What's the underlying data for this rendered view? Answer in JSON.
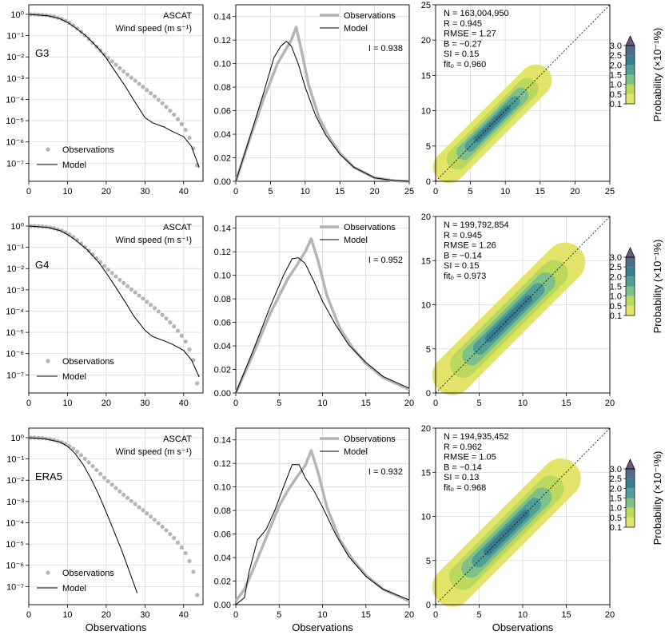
{
  "figure": {
    "xlabel": "Observations",
    "colorbar": {
      "label": "Probability (×10⁻¹%)",
      "ticks": [
        "0.1",
        "0.5",
        "1.0",
        "1.5",
        "2.0",
        "2.5",
        "3.0"
      ],
      "colors": [
        "#e2e46a",
        "#bad85b",
        "#7fc08a",
        "#4f9f96",
        "#387e8f",
        "#4e6d86",
        "#6c5b78"
      ]
    }
  },
  "chart_data": [
    {
      "row": "G3",
      "type": "scatter",
      "panel": "pdf-log",
      "title": "ASCAT",
      "subtitle": "Wind speed (m s⁻¹)",
      "label": "G3",
      "legend": [
        "Observations",
        "Model"
      ],
      "xlim": [
        0,
        45
      ],
      "xticks": [
        "0",
        "10",
        "20",
        "30",
        "40"
      ],
      "yticks": [
        "10⁰",
        "10⁻¹",
        "10⁻²",
        "10⁻³",
        "10⁻⁴",
        "10⁻⁵",
        "10⁻⁶",
        "10⁻⁷"
      ],
      "series": [
        {
          "name": "Observations",
          "x": [
            0.5,
            1.5,
            2.5,
            3.5,
            4.5,
            5.5,
            6.5,
            7.5,
            8.5,
            9.5,
            10.5,
            11.5,
            12.5,
            13.5,
            14.5,
            15.5,
            16.5,
            17.5,
            18.5,
            19.5,
            20.5,
            21.5,
            22.5,
            23.5,
            24.5,
            25.5,
            26.5,
            27.5,
            28.5,
            29.5,
            30.5,
            31.5,
            32.5,
            33.5,
            34.5,
            35.5,
            36.5,
            37.5,
            38.5,
            39.5,
            40.5,
            41.5,
            42.5,
            43.5
          ],
          "y": [
            0,
            0,
            -0.01,
            -0.02,
            -0.04,
            -0.07,
            -0.11,
            -0.16,
            -0.22,
            -0.3,
            -0.4,
            -0.52,
            -0.66,
            -0.82,
            -0.99,
            -1.16,
            -1.34,
            -1.52,
            -1.7,
            -1.88,
            -2.05,
            -2.21,
            -2.37,
            -2.53,
            -2.68,
            -2.83,
            -2.98,
            -3.12,
            -3.27,
            -3.41,
            -3.56,
            -3.71,
            -3.86,
            -4.02,
            -4.18,
            -4.35,
            -4.53,
            -4.72,
            -4.93,
            -5.16,
            -5.43,
            -5.8,
            -6.3,
            -7.1
          ]
        },
        {
          "name": "Model",
          "x": [
            0,
            5,
            8,
            10,
            12,
            15,
            18,
            20,
            22,
            25,
            27,
            30,
            32,
            35,
            37,
            40,
            42,
            44
          ],
          "y": [
            0,
            -0.07,
            -0.2,
            -0.38,
            -0.62,
            -1.05,
            -1.6,
            -2.05,
            -2.6,
            -3.4,
            -4,
            -4.85,
            -5.1,
            -5.3,
            -5.5,
            -5.75,
            -6.2,
            -7.2
          ]
        }
      ]
    },
    {
      "row": "G3",
      "type": "line",
      "panel": "pdf-linear",
      "I": "I = 0.938",
      "legend": [
        "Observations",
        "Model"
      ],
      "xlim": [
        0,
        25
      ],
      "ylim": [
        0,
        0.15
      ],
      "xticks": [
        "0",
        "5",
        "10",
        "15",
        "20",
        "25"
      ],
      "yticks": [
        "0.00",
        "0.02",
        "0.04",
        "0.06",
        "0.08",
        "0.10",
        "0.12",
        "0.14"
      ],
      "series": [
        {
          "name": "Observations",
          "x": [
            0,
            2,
            4,
            6,
            7,
            8,
            8.7,
            9.5,
            10.5,
            12,
            13.5,
            15,
            17,
            20,
            23,
            25
          ],
          "y": [
            0,
            0.036,
            0.07,
            0.1,
            0.11,
            0.12,
            0.131,
            0.11,
            0.082,
            0.054,
            0.037,
            0.024,
            0.012,
            0.003,
            0.0005,
            0
          ]
        },
        {
          "name": "Model",
          "x": [
            0,
            2,
            4,
            5.5,
            6.5,
            7.3,
            8,
            9,
            10,
            11.5,
            13,
            15,
            17,
            20,
            23,
            25
          ],
          "y": [
            0,
            0.037,
            0.075,
            0.105,
            0.115,
            0.119,
            0.115,
            0.1,
            0.08,
            0.056,
            0.039,
            0.023,
            0.012,
            0.003,
            0.0005,
            0
          ]
        }
      ]
    },
    {
      "row": "G3",
      "type": "heatmap",
      "panel": "scatter-density",
      "xlim": [
        0,
        25
      ],
      "ylim": [
        0,
        25
      ],
      "xticks": [
        "0",
        "5",
        "10",
        "15",
        "20",
        "25"
      ],
      "yticks": [
        "0",
        "5",
        "10",
        "15",
        "20",
        "25"
      ],
      "range": [
        0,
        16
      ],
      "stats": [
        "N = 163,004,950",
        "R = 0.945",
        "RMSE = 1.27",
        "B = −0.27",
        "SI = 0.15",
        "fit₀ = 0.960"
      ]
    },
    {
      "row": "G4",
      "type": "scatter",
      "panel": "pdf-log",
      "title": "ASCAT",
      "subtitle": "Wind speed (m s⁻¹)",
      "label": "G4",
      "legend": [
        "Observations",
        "Model"
      ],
      "xlim": [
        0,
        45
      ],
      "xticks": [
        "0",
        "10",
        "20",
        "30",
        "40"
      ],
      "yticks": [
        "10⁰",
        "10⁻¹",
        "10⁻²",
        "10⁻³",
        "10⁻⁴",
        "10⁻⁵",
        "10⁻⁶",
        "10⁻⁷"
      ],
      "series": [
        {
          "name": "Observations",
          "x": [
            0.5,
            1.5,
            2.5,
            3.5,
            4.5,
            5.5,
            6.5,
            7.5,
            8.5,
            9.5,
            10.5,
            11.5,
            12.5,
            13.5,
            14.5,
            15.5,
            16.5,
            17.5,
            18.5,
            19.5,
            20.5,
            21.5,
            22.5,
            23.5,
            24.5,
            25.5,
            26.5,
            27.5,
            28.5,
            29.5,
            30.5,
            31.5,
            32.5,
            33.5,
            34.5,
            35.5,
            36.5,
            37.5,
            38.5,
            39.5,
            40.5,
            41.5,
            42.5,
            43.5
          ],
          "y": [
            0,
            0,
            -0.01,
            -0.02,
            -0.04,
            -0.07,
            -0.11,
            -0.16,
            -0.22,
            -0.3,
            -0.4,
            -0.52,
            -0.66,
            -0.82,
            -0.99,
            -1.16,
            -1.34,
            -1.52,
            -1.7,
            -1.88,
            -2.05,
            -2.21,
            -2.37,
            -2.53,
            -2.68,
            -2.83,
            -2.98,
            -3.12,
            -3.27,
            -3.41,
            -3.56,
            -3.71,
            -3.86,
            -4.02,
            -4.18,
            -4.35,
            -4.53,
            -4.72,
            -4.93,
            -5.16,
            -5.43,
            -5.8,
            -6.3,
            -7.4
          ]
        },
        {
          "name": "Model",
          "x": [
            0,
            5,
            8,
            10,
            12,
            15,
            18,
            20,
            22,
            25,
            27,
            30,
            32,
            35,
            37,
            40,
            42,
            44
          ],
          "y": [
            0,
            -0.07,
            -0.21,
            -0.4,
            -0.65,
            -1.1,
            -1.7,
            -2.2,
            -2.75,
            -3.6,
            -4.2,
            -4.9,
            -5.2,
            -5.4,
            -5.55,
            -5.85,
            -6.3,
            -7.1
          ]
        }
      ]
    },
    {
      "row": "G4",
      "type": "line",
      "panel": "pdf-linear",
      "I": "I = 0.952",
      "legend": [
        "Observations",
        "Model"
      ],
      "xlim": [
        0,
        20
      ],
      "ylim": [
        0,
        0.15
      ],
      "xticks": [
        "0",
        "5",
        "10",
        "15",
        "20"
      ],
      "yticks": [
        "0.00",
        "0.02",
        "0.04",
        "0.06",
        "0.08",
        "0.10",
        "0.12",
        "0.14"
      ],
      "series": [
        {
          "name": "Observations",
          "x": [
            0,
            2,
            4,
            6,
            7,
            8,
            8.7,
            9.5,
            10.5,
            12,
            13.5,
            15,
            17,
            20
          ],
          "y": [
            0,
            0.033,
            0.068,
            0.097,
            0.108,
            0.12,
            0.131,
            0.112,
            0.083,
            0.055,
            0.038,
            0.025,
            0.013,
            0.003
          ]
        },
        {
          "name": "Model",
          "x": [
            0,
            2,
            4,
            5.5,
            6.5,
            7.2,
            8,
            9,
            10,
            11.5,
            13,
            15,
            17,
            20
          ],
          "y": [
            0,
            0.036,
            0.074,
            0.1,
            0.114,
            0.115,
            0.11,
            0.095,
            0.078,
            0.058,
            0.041,
            0.026,
            0.014,
            0.004
          ]
        }
      ]
    },
    {
      "row": "G4",
      "type": "heatmap",
      "panel": "scatter-density",
      "xlim": [
        0,
        20
      ],
      "ylim": [
        0,
        20
      ],
      "xticks": [
        "0",
        "5",
        "10",
        "15",
        "20"
      ],
      "yticks": [
        "0",
        "5",
        "10",
        "15",
        "20"
      ],
      "range": [
        0,
        16.5
      ],
      "stats": [
        "N = 199,792,854",
        "R = 0.945",
        "RMSE = 1.26",
        "B = −0.14",
        "SI = 0.15",
        "fit₀ = 0.973"
      ]
    },
    {
      "row": "ERA5",
      "type": "scatter",
      "panel": "pdf-log",
      "title": "ASCAT",
      "subtitle": "Wind speed (m s⁻¹)",
      "label": "ERA5",
      "legend": [
        "Observations",
        "Model"
      ],
      "xlim": [
        0,
        45
      ],
      "xticks": [
        "0",
        "10",
        "20",
        "30",
        "40"
      ],
      "yticks": [
        "10⁰",
        "10⁻¹",
        "10⁻²",
        "10⁻³",
        "10⁻⁴",
        "10⁻⁵",
        "10⁻⁶",
        "10⁻⁷"
      ],
      "series": [
        {
          "name": "Observations",
          "x": [
            0.5,
            1.5,
            2.5,
            3.5,
            4.5,
            5.5,
            6.5,
            7.5,
            8.5,
            9.5,
            10.5,
            11.5,
            12.5,
            13.5,
            14.5,
            15.5,
            16.5,
            17.5,
            18.5,
            19.5,
            20.5,
            21.5,
            22.5,
            23.5,
            24.5,
            25.5,
            26.5,
            27.5,
            28.5,
            29.5,
            30.5,
            31.5,
            32.5,
            33.5,
            34.5,
            35.5,
            36.5,
            37.5,
            38.5,
            39.5,
            40.5,
            41.5,
            42.5,
            43.5
          ],
          "y": [
            0,
            0,
            -0.01,
            -0.02,
            -0.04,
            -0.07,
            -0.11,
            -0.16,
            -0.22,
            -0.3,
            -0.4,
            -0.52,
            -0.66,
            -0.82,
            -0.99,
            -1.16,
            -1.34,
            -1.52,
            -1.7,
            -1.88,
            -2.05,
            -2.21,
            -2.37,
            -2.53,
            -2.68,
            -2.83,
            -2.98,
            -3.12,
            -3.27,
            -3.41,
            -3.56,
            -3.71,
            -3.86,
            -4.02,
            -4.18,
            -4.35,
            -4.53,
            -4.72,
            -4.93,
            -5.16,
            -5.43,
            -5.8,
            -6.3,
            -7.4
          ]
        },
        {
          "name": "Model",
          "x": [
            0,
            4,
            8,
            10,
            12,
            14,
            16,
            18,
            20,
            22,
            24,
            26,
            28
          ],
          "y": [
            0,
            -0.05,
            -0.2,
            -0.4,
            -0.75,
            -1.25,
            -1.9,
            -2.65,
            -3.5,
            -4.4,
            -5.3,
            -6.3,
            -7.3
          ]
        }
      ]
    },
    {
      "row": "ERA5",
      "type": "line",
      "panel": "pdf-linear",
      "I": "I = 0.932",
      "legend": [
        "Observations",
        "Model"
      ],
      "xlim": [
        0,
        20
      ],
      "ylim": [
        0,
        0.15
      ],
      "xticks": [
        "0",
        "5",
        "10",
        "15",
        "20"
      ],
      "yticks": [
        "0.00",
        "0.02",
        "0.04",
        "0.06",
        "0.08",
        "0.10",
        "0.12",
        "0.14"
      ],
      "series": [
        {
          "name": "Observations",
          "x": [
            0,
            1,
            2,
            3,
            4,
            5,
            6,
            7,
            8,
            8.7,
            9.5,
            10.5,
            12,
            13.5,
            15,
            17,
            20
          ],
          "y": [
            0.003,
            0.013,
            0.03,
            0.048,
            0.066,
            0.084,
            0.097,
            0.108,
            0.118,
            0.131,
            0.112,
            0.083,
            0.055,
            0.038,
            0.025,
            0.013,
            0.003
          ]
        },
        {
          "name": "Model",
          "x": [
            0,
            1,
            1.5,
            2.5,
            3.5,
            4.5,
            5.5,
            6.5,
            7.3,
            8,
            9,
            10,
            11.5,
            13,
            15,
            17,
            20
          ],
          "y": [
            0,
            0.006,
            0.027,
            0.055,
            0.064,
            0.08,
            0.1,
            0.119,
            0.119,
            0.108,
            0.097,
            0.083,
            0.06,
            0.041,
            0.024,
            0.013,
            0.004
          ]
        }
      ]
    },
    {
      "row": "ERA5",
      "type": "heatmap",
      "panel": "scatter-density",
      "xlim": [
        0,
        20
      ],
      "ylim": [
        0,
        20
      ],
      "xticks": [
        "0",
        "5",
        "10",
        "15",
        "20"
      ],
      "yticks": [
        "0",
        "5",
        "10",
        "15",
        "20"
      ],
      "range": [
        0,
        16
      ],
      "stats": [
        "N = 194,935,452",
        "R = 0.962",
        "RMSE = 1.05",
        "B = −0.14",
        "SI = 0.13",
        "fit₀ = 0.968"
      ]
    }
  ]
}
